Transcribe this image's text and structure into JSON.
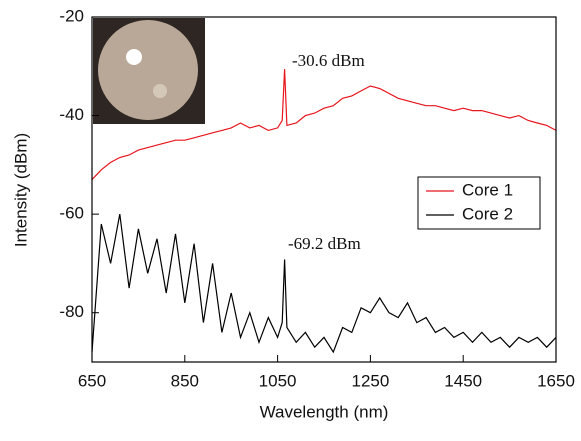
{
  "chart_data": {
    "type": "line",
    "x_label": "Wavelength (nm)",
    "y_label": "Intensity (dBm)",
    "x": [
      650,
      670,
      690,
      710,
      730,
      750,
      770,
      790,
      810,
      830,
      850,
      870,
      890,
      910,
      930,
      950,
      970,
      990,
      1010,
      1030,
      1050,
      1060,
      1065,
      1070,
      1090,
      1110,
      1130,
      1150,
      1170,
      1190,
      1210,
      1230,
      1250,
      1270,
      1290,
      1310,
      1330,
      1350,
      1370,
      1390,
      1410,
      1430,
      1450,
      1470,
      1490,
      1510,
      1530,
      1550,
      1570,
      1590,
      1610,
      1630,
      1650
    ],
    "series": [
      {
        "name": "Core 1",
        "color": "#e8141c",
        "values": [
          -53,
          -51,
          -49.5,
          -48.5,
          -48,
          -47,
          -46.5,
          -46,
          -45.5,
          -45,
          -45,
          -44.5,
          -44,
          -43.5,
          -43,
          -42.5,
          -41.5,
          -42.5,
          -42,
          -43,
          -42.5,
          -41,
          -30.6,
          -42,
          -41.5,
          -40,
          -39.5,
          -38.5,
          -38,
          -36.5,
          -36,
          -35,
          -34,
          -34.5,
          -35.5,
          -36.5,
          -37,
          -37.5,
          -38,
          -38,
          -38.5,
          -39,
          -38.5,
          -39,
          -39,
          -39.5,
          -40,
          -40.5,
          -40,
          -41,
          -41.5,
          -42,
          -43
        ]
      },
      {
        "name": "Core 2",
        "color": "#000000",
        "values": [
          -88,
          -62,
          -70,
          -60,
          -75,
          -63,
          -72,
          -65,
          -76,
          -64,
          -78,
          -66,
          -82,
          -70,
          -84,
          -76,
          -85,
          -80,
          -86,
          -81,
          -85,
          -82,
          -69.2,
          -83,
          -86,
          -84,
          -87,
          -85,
          -88,
          -83,
          -84,
          -79,
          -80,
          -77,
          -80,
          -81,
          -78,
          -82,
          -81,
          -84,
          -83,
          -85,
          -84,
          -86,
          -84,
          -86,
          -85,
          -87,
          -85,
          -86,
          -85,
          -87,
          -85
        ]
      }
    ],
    "annotations": [
      "-30.6 dBm",
      "-69.2 dBm"
    ],
    "xlim": [
      650,
      1650
    ],
    "xticks": [
      650,
      850,
      1050,
      1250,
      1450,
      1650
    ],
    "ylim": [
      -90,
      -20
    ],
    "yticks": [
      -80,
      -60,
      -40,
      -20
    ],
    "legend": "right"
  }
}
